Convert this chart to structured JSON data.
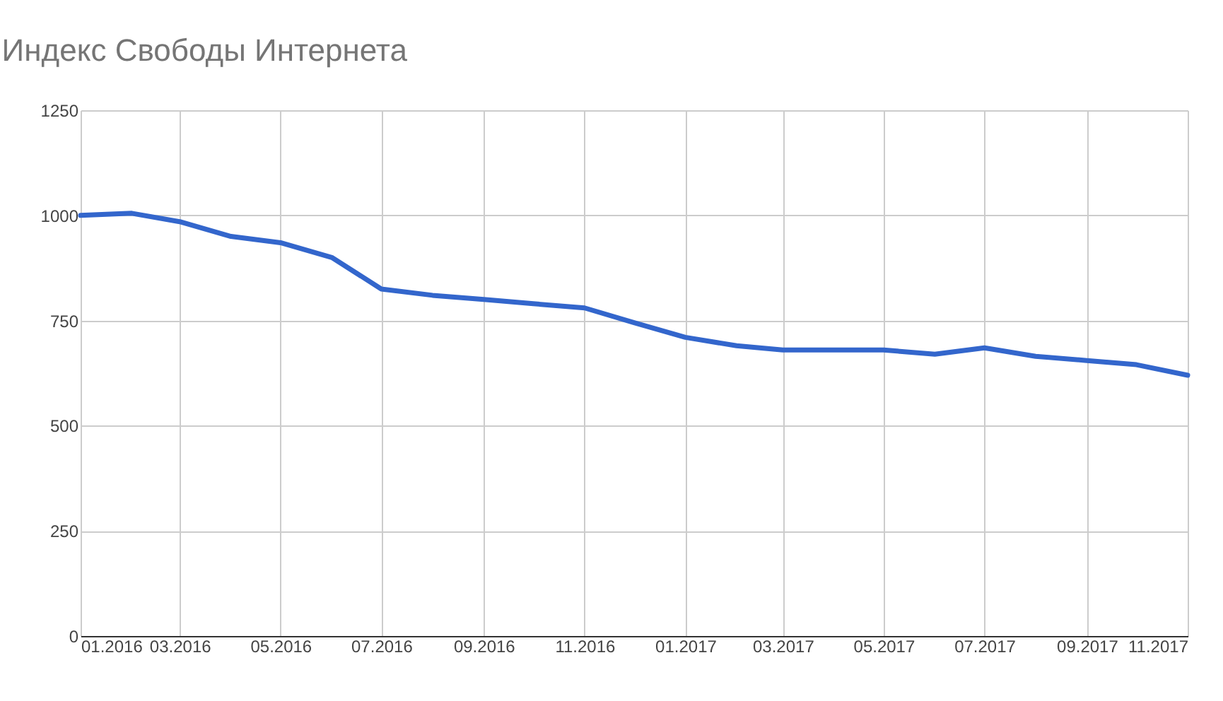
{
  "chart_data": {
    "type": "line",
    "title": "Индекс Свободы Интернета",
    "x": [
      "2016-01",
      "2016-02",
      "2016-03",
      "2016-04",
      "2016-05",
      "2016-06",
      "2016-07",
      "2016-08",
      "2016-09",
      "2016-10",
      "2016-11",
      "2016-12",
      "2017-01",
      "2017-02",
      "2017-03",
      "2017-04",
      "2017-05",
      "2017-06",
      "2017-07",
      "2017-08",
      "2017-09",
      "2017-10",
      "2017-11"
    ],
    "series": [
      {
        "color": "#3366cc",
        "values": [
          1000,
          1005,
          985,
          950,
          935,
          900,
          825,
          810,
          800,
          790,
          780,
          745,
          710,
          690,
          680,
          680,
          680,
          670,
          685,
          665,
          655,
          645,
          620
        ]
      }
    ],
    "xlim": [
      "2016-01",
      "2017-11"
    ],
    "xticks": [
      {
        "value": "2016-01",
        "label": "01.2016"
      },
      {
        "value": "2016-03",
        "label": "03.2016"
      },
      {
        "value": "2016-05",
        "label": "05.2016"
      },
      {
        "value": "2016-07",
        "label": "07.2016"
      },
      {
        "value": "2016-09",
        "label": "09.2016"
      },
      {
        "value": "2016-11",
        "label": "11.2016"
      },
      {
        "value": "2017-01",
        "label": "01.2017"
      },
      {
        "value": "2017-03",
        "label": "03.2017"
      },
      {
        "value": "2017-05",
        "label": "05.2017"
      },
      {
        "value": "2017-07",
        "label": "07.2017"
      },
      {
        "value": "2017-09",
        "label": "09.2017"
      },
      {
        "value": "2017-11",
        "label": "11.2017"
      }
    ],
    "ylim": [
      0,
      1250
    ],
    "yticks": [
      0,
      250,
      500,
      750,
      1000,
      1250
    ],
    "grid": true
  }
}
